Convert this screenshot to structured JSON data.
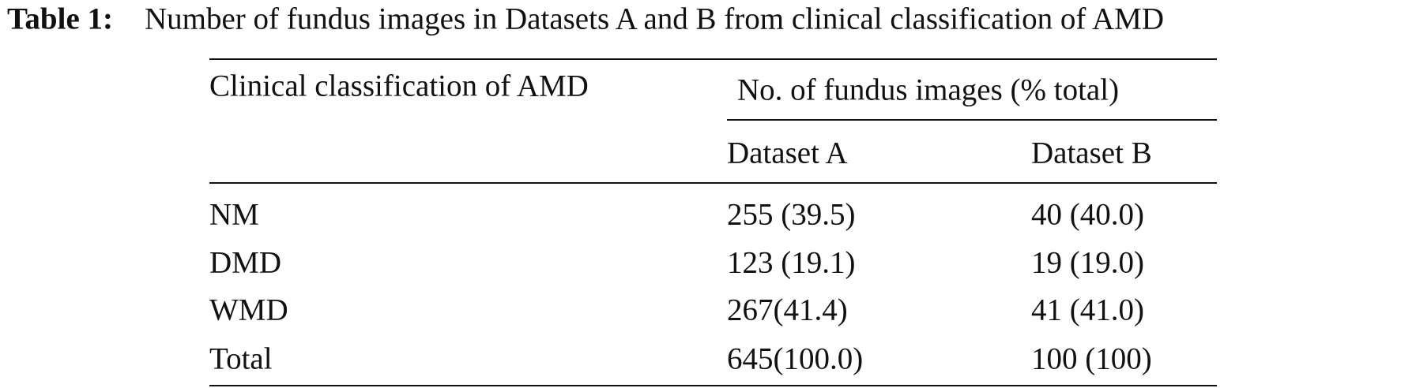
{
  "caption": {
    "label": "Table 1:",
    "text": "Number of fundus images in Datasets A and B from clinical classification of AMD"
  },
  "table": {
    "header": {
      "row_label": "Clinical classification of AMD",
      "group": "No. of fundus images (% total)",
      "columns": [
        "Dataset A",
        "Dataset B"
      ]
    },
    "rows": [
      [
        "NM",
        "255 (39.5)",
        "40 (40.0)"
      ],
      [
        "DMD",
        "123 (19.1)",
        "19 (19.0)"
      ],
      [
        "WMD",
        "267(41.4)",
        "41 (41.0)"
      ],
      [
        "Total",
        "645(100.0)",
        "100 (100)"
      ]
    ]
  }
}
